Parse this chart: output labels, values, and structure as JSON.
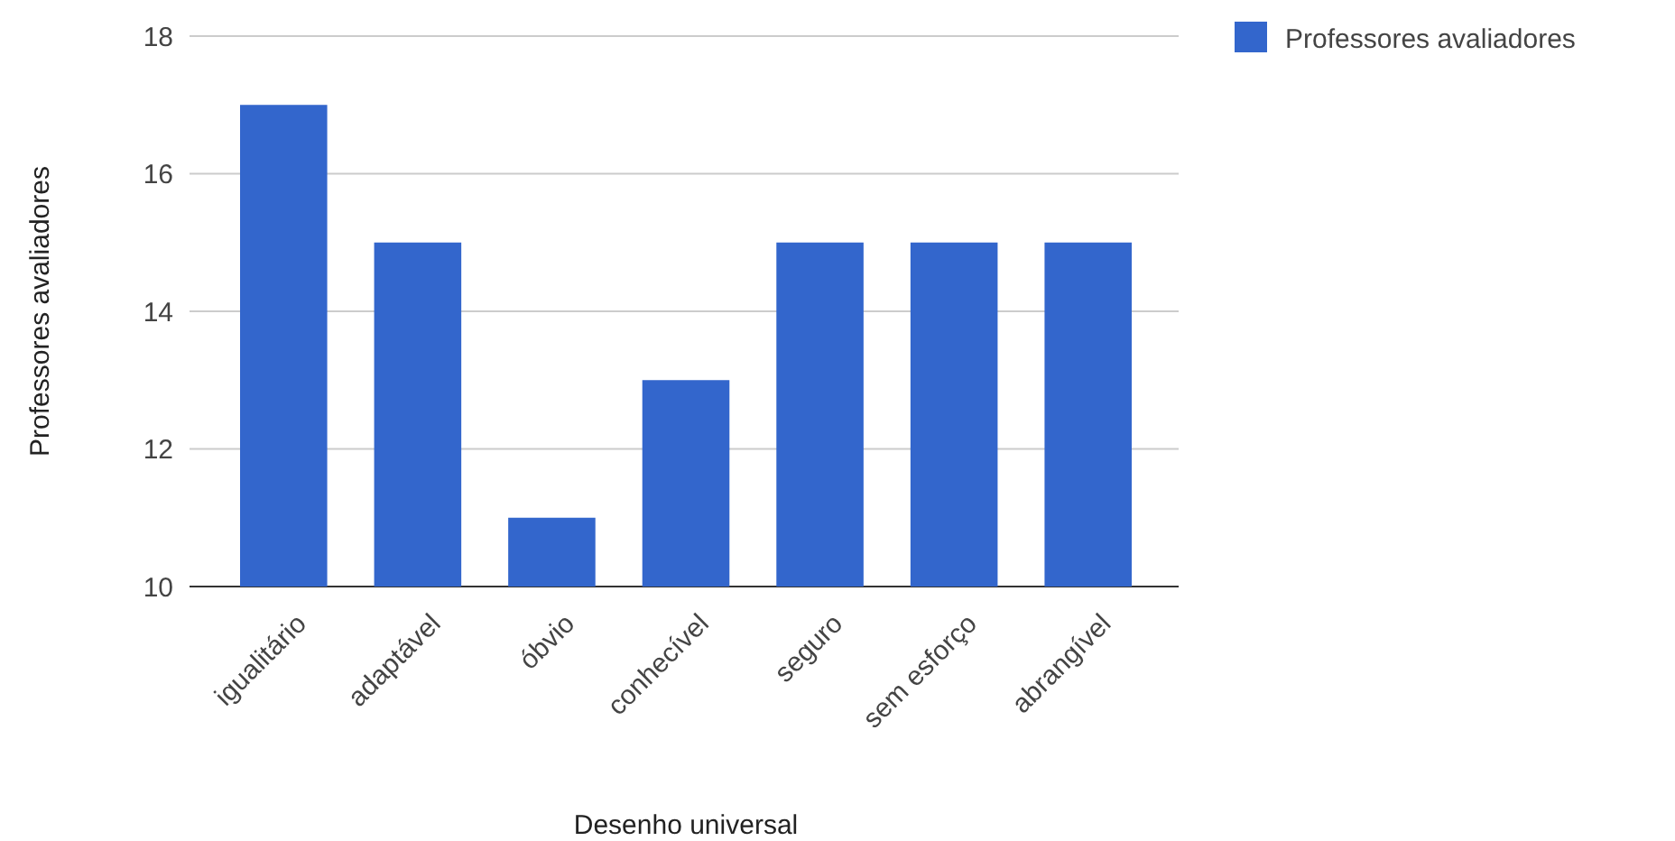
{
  "chart_data": {
    "type": "bar",
    "xlabel": "Desenho universal",
    "ylabel": "Professores avaliadores",
    "categories": [
      "igualitário",
      "adaptável",
      "óbvio",
      "conhecível",
      "seguro",
      "sem esforço",
      "abrangível"
    ],
    "series": [
      {
        "name": "Professores avaliadores",
        "color": "#3366cc",
        "values": [
          17,
          15,
          11,
          13,
          15,
          15,
          15
        ]
      }
    ],
    "ylim": [
      10,
      18
    ],
    "yticks": [
      10,
      12,
      14,
      16,
      18
    ],
    "grid": "y",
    "legend": "top right"
  }
}
